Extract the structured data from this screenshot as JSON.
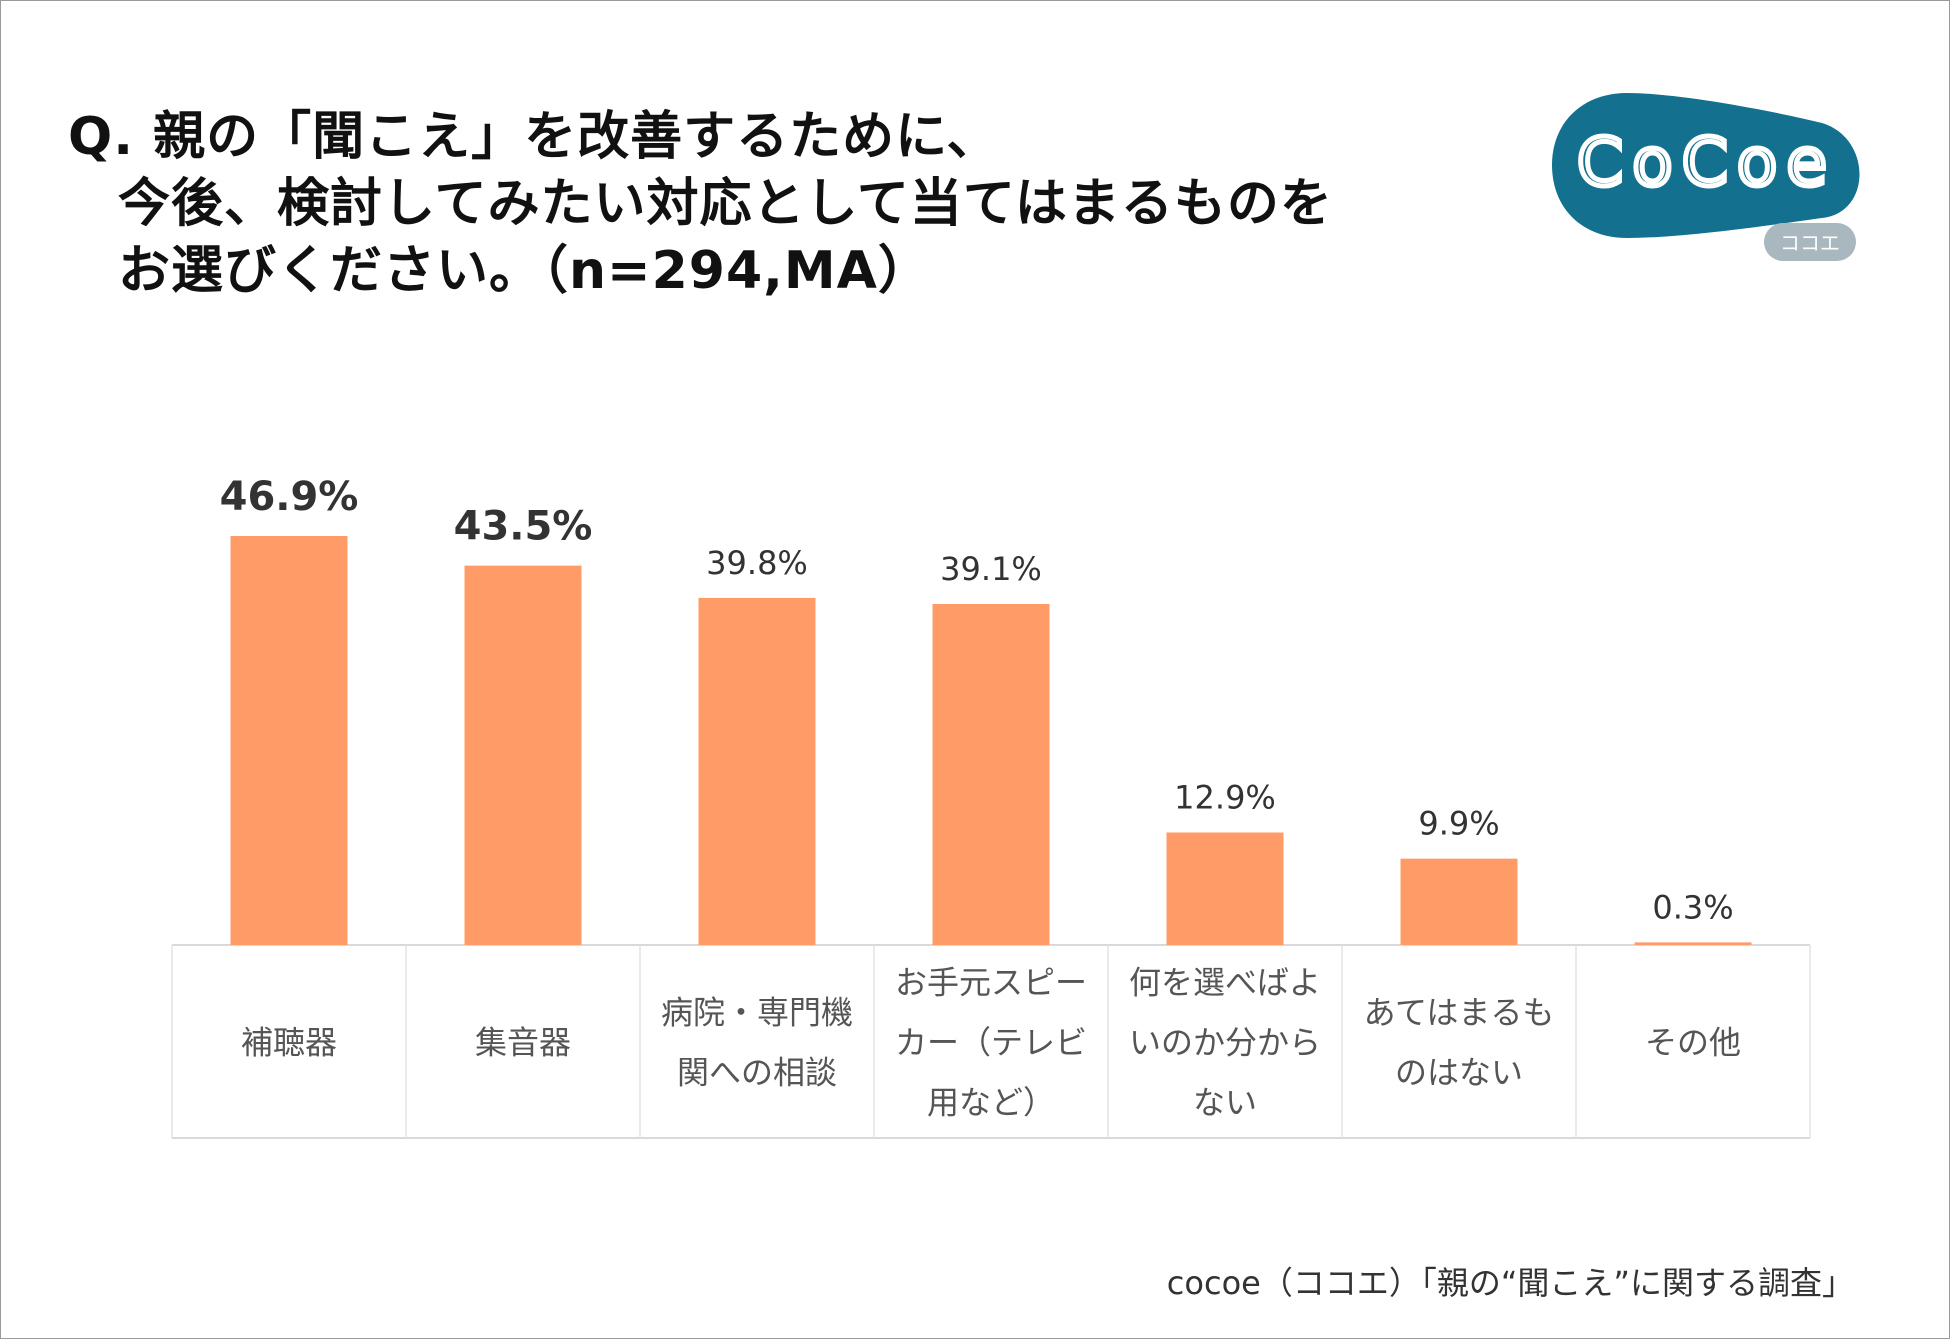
{
  "title": {
    "lines": [
      "Q. 親の「聞こえ」を改善するために、",
      "今後、検討してみたい対応として当てはまるものを",
      "お選びください。（n=294,MA）"
    ]
  },
  "logo": {
    "text": "CoCoe",
    "subtext": "ココエ",
    "color": "#14708f",
    "sub_color": "#a9b8bf"
  },
  "footer": "cocoe（ココエ）「親の“聞こえ”に関する調査」",
  "chart_data": {
    "type": "bar",
    "categories": [
      [
        "補聴器"
      ],
      [
        "集音器"
      ],
      [
        "病院・専門機",
        "関への相談"
      ],
      [
        "お手元スピー",
        "カー（テレビ",
        "用など）"
      ],
      [
        "何を選べばよ",
        "いのか分から",
        "ない"
      ],
      [
        "あてはまるも",
        "のはない"
      ],
      [
        "その他"
      ]
    ],
    "values": [
      46.9,
      43.5,
      39.8,
      39.1,
      12.9,
      9.9,
      0.3
    ],
    "data_labels": [
      "46.9%",
      "43.5%",
      "39.8%",
      "39.1%",
      "12.9%",
      "9.9%",
      "0.3%"
    ],
    "highlighted": [
      true,
      true,
      false,
      false,
      false,
      false,
      false
    ],
    "bar_color": "#ff9b66",
    "ylim": [
      0,
      50
    ],
    "grid": false,
    "legend": "none"
  }
}
